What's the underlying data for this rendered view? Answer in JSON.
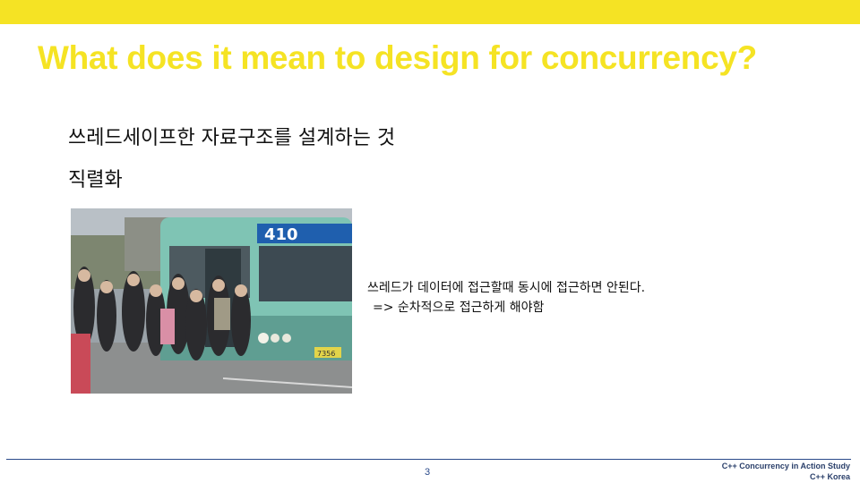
{
  "slide": {
    "title": "What does it mean to design for concurrency?",
    "bullets": [
      "쓰레드세이프한 자료구조를 설계하는 것",
      "직렬화"
    ],
    "caption_line1": "쓰레드가 데이터에 접근할때 동시에 접근하면 안된다.",
    "caption_line2": "=> 순차적으로 접근하게 해야함",
    "image": {
      "bus_route": "410",
      "plate": "7356"
    }
  },
  "footer": {
    "page_number": "3",
    "study": "C++ Concurrency in Action Study",
    "org": "C++ Korea"
  },
  "colors": {
    "accent": "#f5e324",
    "footer": "#2a4a8a",
    "bus_body": "#7fc4b4"
  }
}
